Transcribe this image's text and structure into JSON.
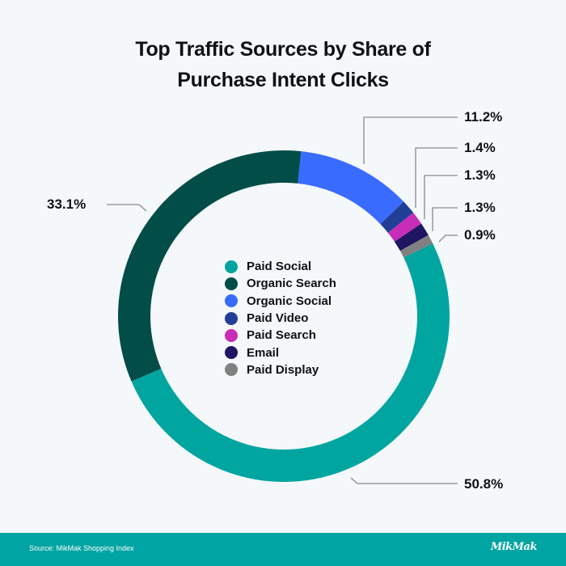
{
  "title": {
    "line1": "Top Traffic Sources by Share of",
    "line2": "Purchase Intent Clicks"
  },
  "chart_data": {
    "type": "pie",
    "subtype": "donut",
    "title": "Top Traffic Sources by Share of Purchase Intent Clicks",
    "categories": [
      "Paid Social",
      "Organic Search",
      "Organic Social",
      "Paid Video",
      "Paid Search",
      "Email",
      "Paid Display"
    ],
    "values": [
      50.8,
      33.1,
      11.2,
      1.4,
      1.3,
      1.3,
      0.9
    ],
    "unit": "%",
    "colors": [
      "#00a5a0",
      "#024d47",
      "#3a6bff",
      "#223f98",
      "#c82db8",
      "#1f1563",
      "#808080"
    ],
    "legend_position": "center"
  },
  "labels": {
    "organic_search": "33.1%",
    "organic_social": "11.2%",
    "paid_video": "1.4%",
    "paid_search": "1.3%",
    "email": "1.3%",
    "paid_display": "0.9%",
    "paid_social": "50.8%"
  },
  "legend": {
    "items": [
      {
        "label": "Paid Social",
        "color": "#00a5a0"
      },
      {
        "label": "Organic Search",
        "color": "#024d47"
      },
      {
        "label": "Organic Social",
        "color": "#3a6bff"
      },
      {
        "label": "Paid Video",
        "color": "#223f98"
      },
      {
        "label": "Paid Search",
        "color": "#c82db8"
      },
      {
        "label": "Email",
        "color": "#1f1563"
      },
      {
        "label": "Paid Display",
        "color": "#808080"
      }
    ]
  },
  "footer": {
    "source": "Source: MikMak Shopping Index",
    "logo": "MikMak",
    "background": "#00a4a2"
  }
}
